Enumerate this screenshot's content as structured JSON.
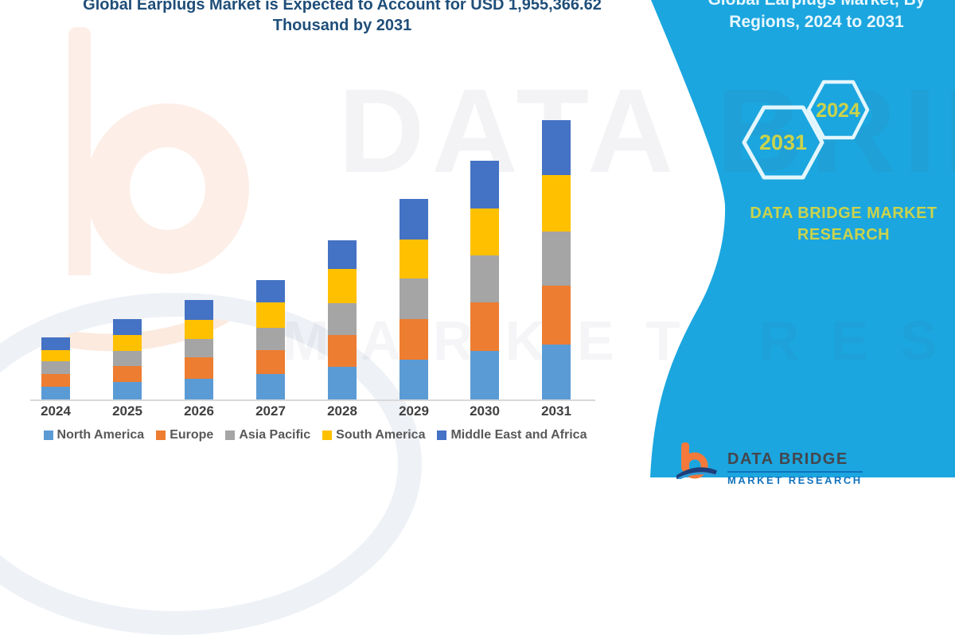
{
  "header": {
    "title_line1": "Global Earplugs Market is Expected to Account for USD 1,955,366.62",
    "title_line2": "Thousand by 2031",
    "title_color": "#1F4E79"
  },
  "chart_data": {
    "type": "bar",
    "stacked": true,
    "title": "Global Earplugs Market is Expected to Account for USD 1,955,366.62 Thousand by 2031",
    "xlabel": "",
    "ylabel": "",
    "units": "USD Thousand (estimated from bar heights; 2031 total = 1,955,366.62)",
    "legend_position": "bottom",
    "gridlines": false,
    "y_axis_labels_visible": false,
    "categories": [
      "2024",
      "2025",
      "2026",
      "2027",
      "2028",
      "2029",
      "2030",
      "2031"
    ],
    "series": [
      {
        "name": "North America",
        "color": "#5B9BD5",
        "values": [
          89200,
          122700,
          145000,
          178400,
          228600,
          278800,
          340100,
          384700
        ]
      },
      {
        "name": "Europe",
        "color": "#ED7D31",
        "values": [
          89200,
          111500,
          150500,
          167300,
          223000,
          284400,
          340100,
          412600
        ]
      },
      {
        "name": "Asia Pacific",
        "color": "#A5A5A5",
        "values": [
          89200,
          105900,
          128200,
          156100,
          223000,
          284400,
          329000,
          379100
        ]
      },
      {
        "name": "South America",
        "color": "#FFC000",
        "values": [
          78100,
          111500,
          133800,
          178400,
          239800,
          273200,
          329000,
          395900
        ]
      },
      {
        "name": "Middle East and Africa",
        "color": "#4472C4",
        "values": [
          89200,
          111500,
          139400,
          156100,
          200700,
          284400,
          334500,
          384700
        ]
      }
    ],
    "totals_estimated": [
      434900,
      563100,
      696900,
      836300,
      1115100,
      1405200,
      1672700,
      1957000
    ]
  },
  "legend_text_color": "#595959",
  "axis_label_color": "#404040",
  "side_panel": {
    "background": "#1BA6DF",
    "title_line1": "Global Earplugs Market, By",
    "title_line2": "Regions, 2024 to 2031",
    "title_color": "#E8F7FE",
    "hexagons": [
      {
        "label": "2031"
      },
      {
        "label": "2024"
      }
    ],
    "hexagon_outline_color": "#E3F6FD",
    "accent_text_color": "#CBD34B",
    "brand_line1": "DATA BRIDGE MARKET",
    "brand_line2": "RESEARCH"
  },
  "watermark": {
    "line1": "DATA BRIDGE",
    "line2": "MARKET RESEARCH"
  },
  "footer_logo": {
    "brand": "DATA BRIDGE",
    "sub": "MARKET RESEARCH",
    "b_orange": "#F4793B",
    "swoosh_navy": "#1D3E7A",
    "brand_color": "#45464E",
    "sub_color": "#1273BE"
  }
}
